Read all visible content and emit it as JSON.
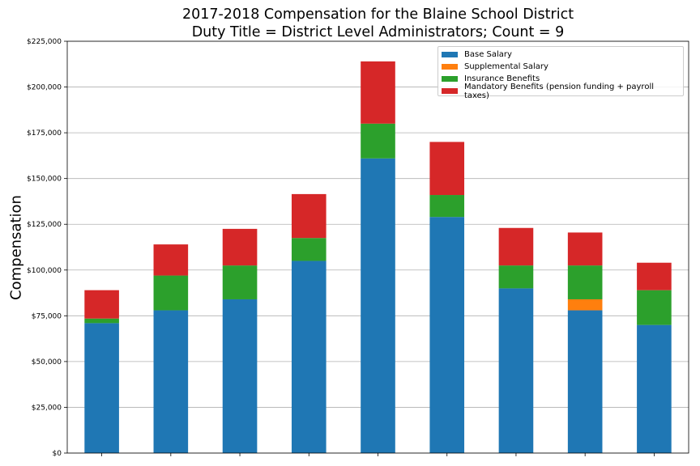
{
  "chart_data": {
    "type": "bar",
    "stacked": true,
    "title": "2017-2018 Compensation for the Blaine School District",
    "subtitle": "Duty Title = District Level Administrators; Count = 9",
    "xlabel": "",
    "ylabel": "Compensation",
    "ylim": [
      0,
      225000
    ],
    "yticks": [
      "$0",
      "$25,000",
      "$50,000",
      "$75,000",
      "$100,000",
      "$125,000",
      "$150,000",
      "$175,000",
      "$200,000",
      "$225,000"
    ],
    "categories": [
      "",
      "",
      "",
      "",
      "",
      "",
      "",
      "",
      ""
    ],
    "grid": "horizontal",
    "legend_position": "top-right",
    "series": [
      {
        "name": "Base Salary",
        "color": "#1f77b4",
        "values": [
          71000,
          78000,
          84000,
          105000,
          161000,
          129000,
          90000,
          78000,
          70000
        ]
      },
      {
        "name": "Supplemental Salary",
        "color": "#ff7f0e",
        "values": [
          0,
          0,
          0,
          0,
          0,
          0,
          0,
          6000,
          0
        ]
      },
      {
        "name": "Insurance Benefits",
        "color": "#2ca02c",
        "values": [
          2500,
          19000,
          18500,
          12500,
          19000,
          12000,
          12500,
          18500,
          19000
        ]
      },
      {
        "name": "Mandatory Benefits (pension funding + payroll taxes)",
        "color": "#d62728",
        "values": [
          15500,
          17000,
          20000,
          24000,
          34000,
          29000,
          20500,
          18000,
          15000
        ]
      }
    ]
  }
}
